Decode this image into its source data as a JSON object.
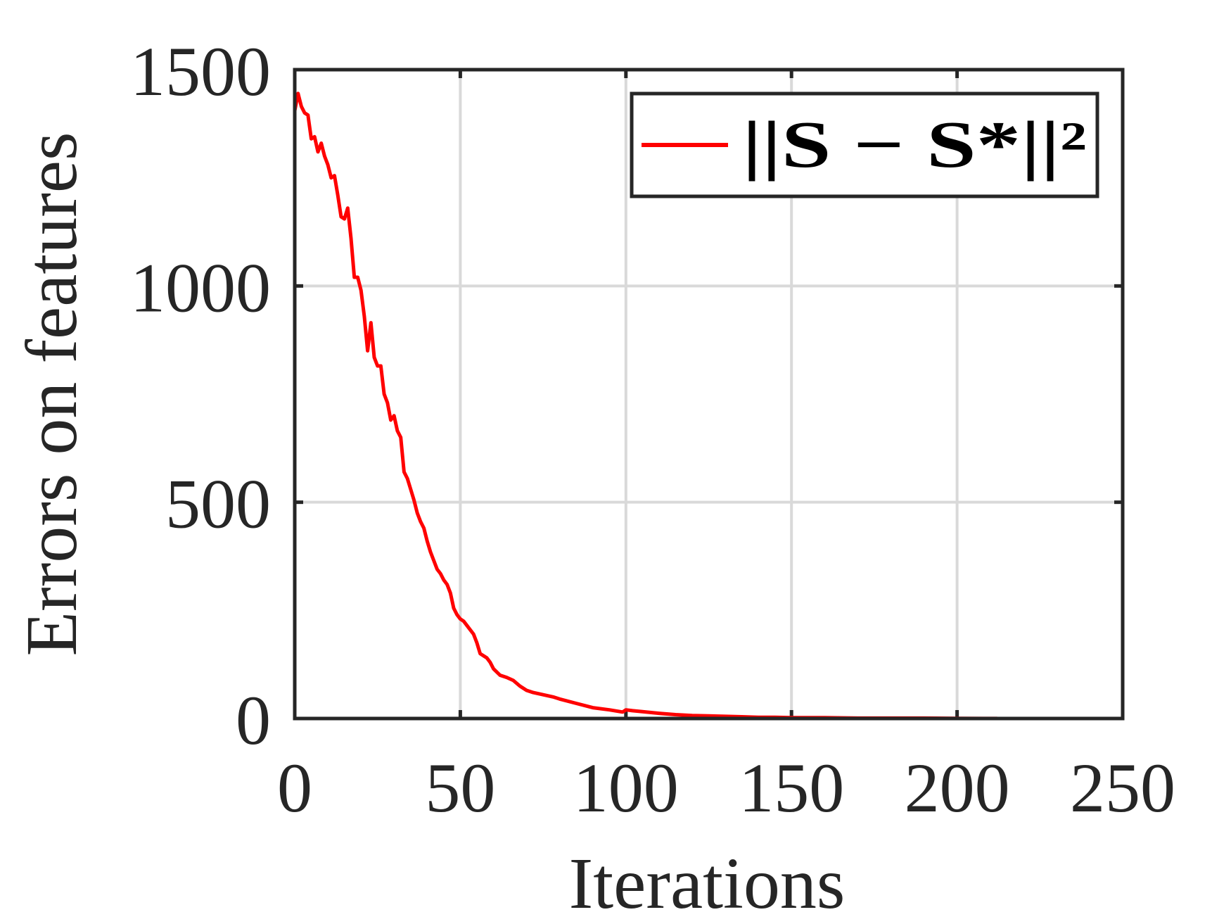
{
  "chart_data": {
    "type": "line",
    "xlabel": "Iterations",
    "ylabel": "Errors on features",
    "xlim": [
      0,
      250
    ],
    "ylim": [
      0,
      1500
    ],
    "x_ticks": [
      "0",
      "50",
      "100",
      "150",
      "200",
      "250"
    ],
    "y_ticks": [
      "0",
      "500",
      "1000",
      "1500"
    ],
    "grid": true,
    "legend_position": "top-right",
    "series": [
      {
        "name": "||S − S*||²",
        "color": "#ff0000",
        "x": [
          0,
          1,
          2,
          3,
          4,
          5,
          6,
          7,
          8,
          9,
          10,
          11,
          12,
          13,
          14,
          15,
          16,
          17,
          18,
          19,
          20,
          21,
          22,
          23,
          24,
          25,
          26,
          27,
          28,
          29,
          30,
          31,
          32,
          33,
          34,
          35,
          36,
          37,
          38,
          39,
          40,
          41,
          42,
          43,
          44,
          45,
          46,
          47,
          48,
          49,
          50,
          51,
          52,
          53,
          54,
          55,
          56,
          57,
          58,
          59,
          60,
          62,
          64,
          66,
          68,
          70,
          72,
          75,
          78,
          80,
          85,
          90,
          95,
          99,
          100,
          102,
          105,
          110,
          115,
          120,
          125,
          130,
          135,
          140,
          145,
          150,
          160,
          170,
          180,
          190,
          200,
          212
        ],
        "values": [
          1405,
          1445,
          1415,
          1400,
          1395,
          1340,
          1345,
          1310,
          1330,
          1300,
          1280,
          1250,
          1255,
          1210,
          1160,
          1155,
          1180,
          1110,
          1020,
          1020,
          990,
          930,
          850,
          915,
          835,
          815,
          815,
          750,
          730,
          690,
          700,
          665,
          650,
          570,
          555,
          530,
          505,
          475,
          455,
          440,
          410,
          385,
          365,
          345,
          335,
          320,
          310,
          290,
          255,
          240,
          230,
          225,
          215,
          205,
          195,
          175,
          150,
          145,
          140,
          130,
          115,
          100,
          95,
          88,
          75,
          65,
          60,
          55,
          50,
          45,
          35,
          25,
          20,
          15,
          20,
          18,
          16,
          12,
          9,
          7,
          6,
          5,
          4,
          3,
          3,
          2,
          2,
          1,
          1,
          1,
          0.5,
          0.2
        ]
      }
    ]
  }
}
